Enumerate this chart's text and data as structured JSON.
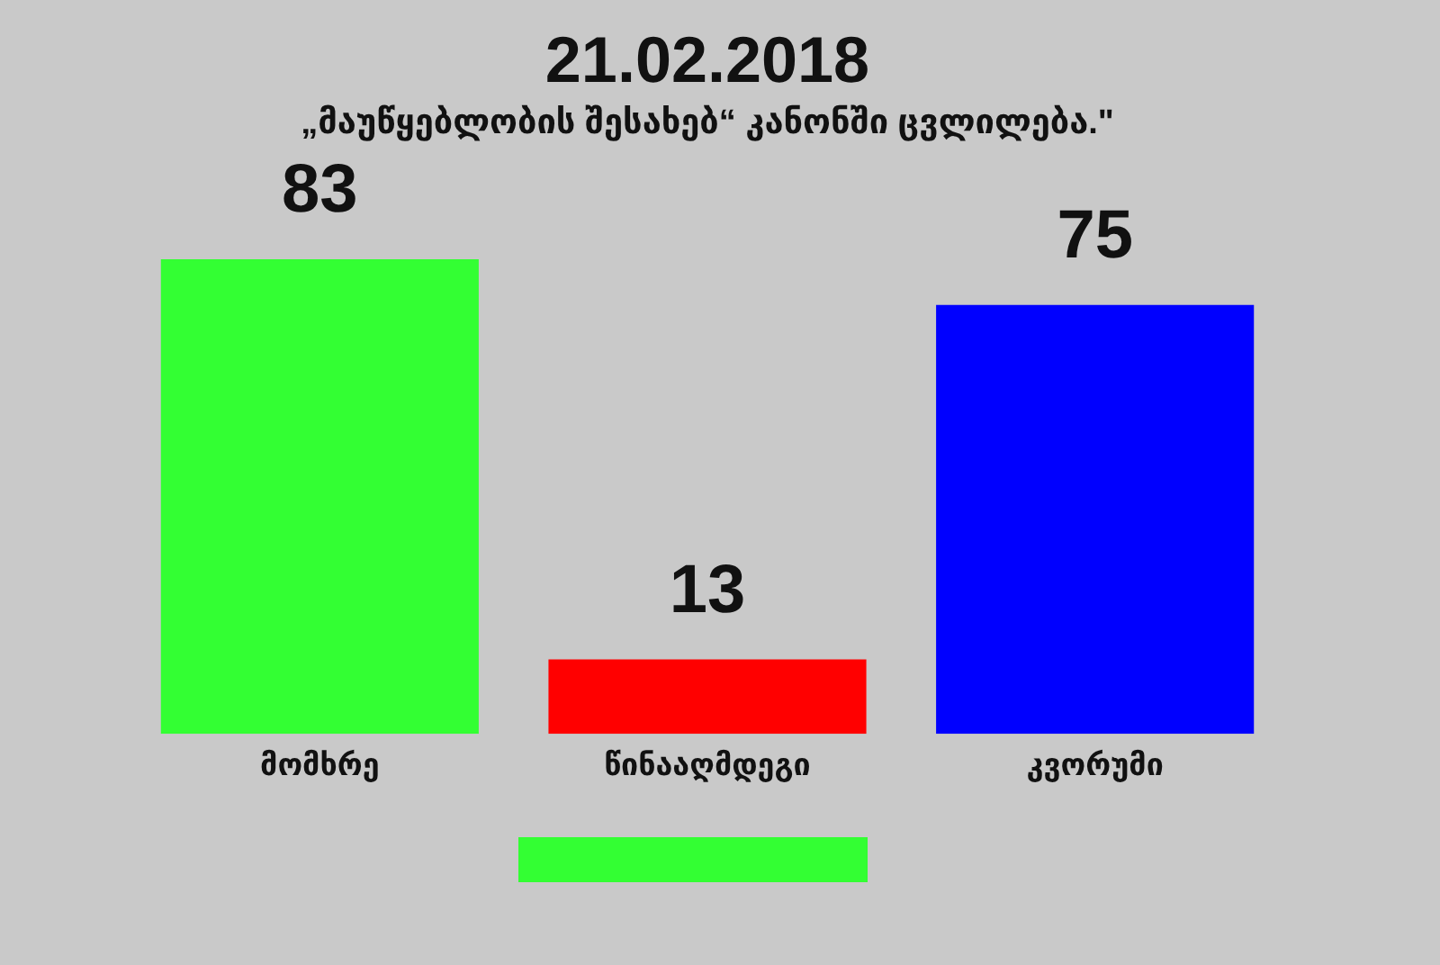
{
  "chart_data": {
    "type": "bar",
    "title": "21.02.2018",
    "subtitle": "„მაუწყებლობის შესახებ“ კანონში ცვლილება.\"",
    "categories": [
      "მომხრე",
      "წინააღმდეგი",
      "კვორუმი"
    ],
    "values": [
      83,
      13,
      75
    ],
    "colors": [
      "#33ff33",
      "#ff0000",
      "#0000ff"
    ],
    "data_labels": true,
    "grid": false,
    "legend": false
  }
}
